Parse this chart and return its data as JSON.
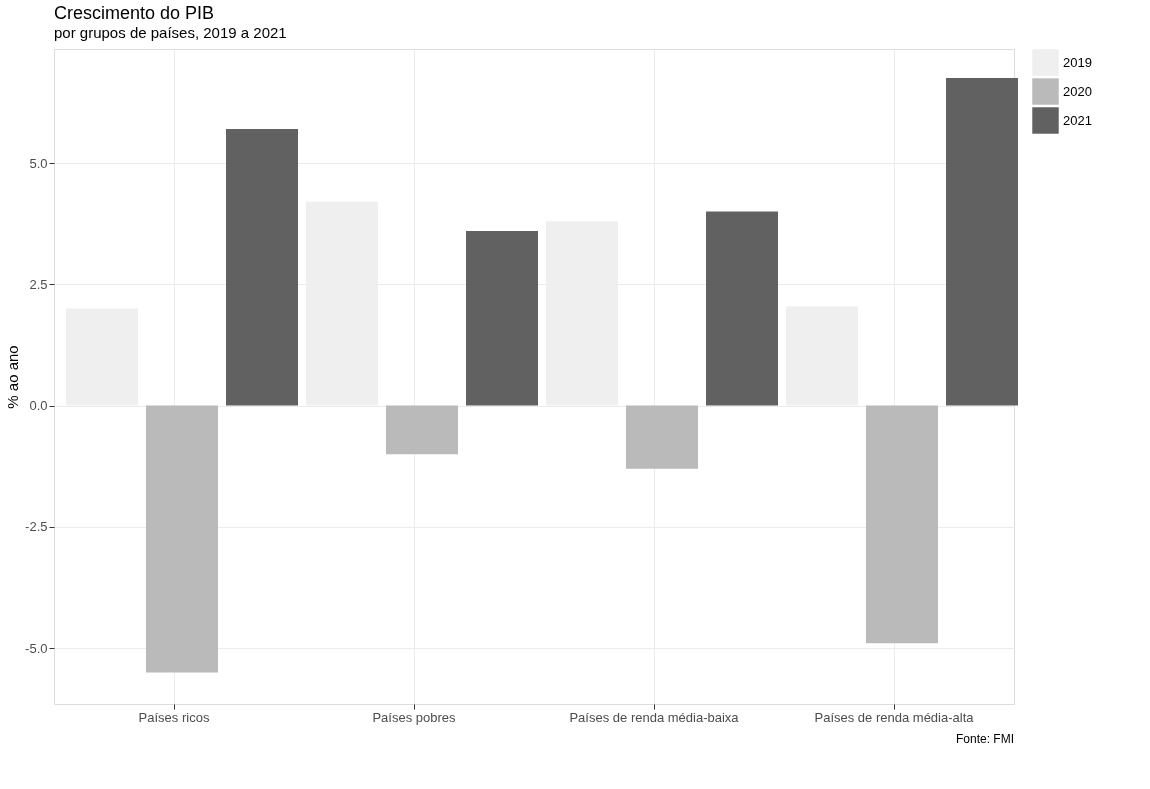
{
  "chart_data": {
    "type": "bar",
    "title": "Crescimento do PIB",
    "subtitle": "por grupos de países, 2019 a 2021",
    "ylabel": "% ao ano",
    "categories": [
      "Países ricos",
      "Países pobres",
      "Países de renda média-baixa",
      "Países de renda média-alta"
    ],
    "series": [
      {
        "name": "2019",
        "color": "#efefef",
        "values": [
          2.0,
          4.2,
          3.8,
          2.05
        ]
      },
      {
        "name": "2020",
        "color": "#bababa",
        "values": [
          -5.5,
          -1.0,
          -1.3,
          -4.9
        ]
      },
      {
        "name": "2021",
        "color": "#616161",
        "values": [
          5.7,
          3.6,
          4.0,
          6.75
        ]
      }
    ],
    "ylim": [
      -6.15,
      7.35
    ],
    "yticks": [
      {
        "value": -5,
        "label": "-5.0"
      },
      {
        "value": -2.5,
        "label": "-2.5"
      },
      {
        "value": 0,
        "label": "0.0"
      },
      {
        "value": 2.5,
        "label": "2.5"
      },
      {
        "value": 5,
        "label": "5.0"
      }
    ],
    "grid": true,
    "legend": "right",
    "annotations": [
      "Fonte: FMI"
    ]
  }
}
